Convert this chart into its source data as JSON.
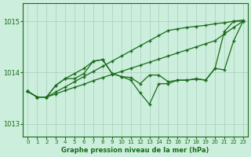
{
  "bg_color": "#cceedd",
  "grid_color": "#aaccbb",
  "line_color": "#1a6b1a",
  "marker_color": "#1a6b1a",
  "xlabel": "Graphe pression niveau de la mer (hPa)",
  "xlim": [
    -0.5,
    23.5
  ],
  "ylim": [
    1012.75,
    1015.35
  ],
  "yticks": [
    1013,
    1014,
    1015
  ],
  "xticks": [
    0,
    1,
    2,
    3,
    4,
    5,
    6,
    7,
    8,
    9,
    10,
    11,
    12,
    13,
    14,
    15,
    16,
    17,
    18,
    19,
    20,
    21,
    22,
    23
  ],
  "series": [
    [
      1013.63,
      1013.52,
      1013.52,
      1013.62,
      1013.72,
      1013.82,
      1013.92,
      1014.02,
      1014.12,
      1014.22,
      1014.32,
      1014.42,
      1014.52,
      1014.62,
      1014.72,
      1014.82,
      1014.85,
      1014.88,
      1014.9,
      1014.92,
      1014.95,
      1014.97,
      1015.0,
      1015.02
    ],
    [
      1013.63,
      1013.52,
      1013.52,
      1013.58,
      1013.65,
      1013.71,
      1013.77,
      1013.84,
      1013.9,
      1013.96,
      1014.02,
      1014.08,
      1014.14,
      1014.2,
      1014.26,
      1014.32,
      1014.38,
      1014.44,
      1014.5,
      1014.56,
      1014.62,
      1014.75,
      1014.88,
      1015.0
    ],
    [
      1013.63,
      1013.52,
      1013.52,
      1013.75,
      1013.88,
      1013.88,
      1013.98,
      1014.22,
      1014.25,
      1013.98,
      1013.92,
      1013.9,
      1013.78,
      1013.95,
      1013.95,
      1013.82,
      1013.85,
      1013.85,
      1013.87,
      1013.85,
      1014.08,
      1014.05,
      1014.62,
      1015.0
    ],
    [
      1013.63,
      1013.52,
      1013.52,
      1013.75,
      1013.88,
      1013.98,
      1014.08,
      1014.22,
      1014.25,
      1013.98,
      1013.92,
      1013.85,
      1013.6,
      1013.38,
      1013.78,
      1013.78,
      1013.85,
      1013.85,
      1013.88,
      1013.85,
      1014.08,
      1014.8,
      1015.0,
      1015.0
    ]
  ]
}
